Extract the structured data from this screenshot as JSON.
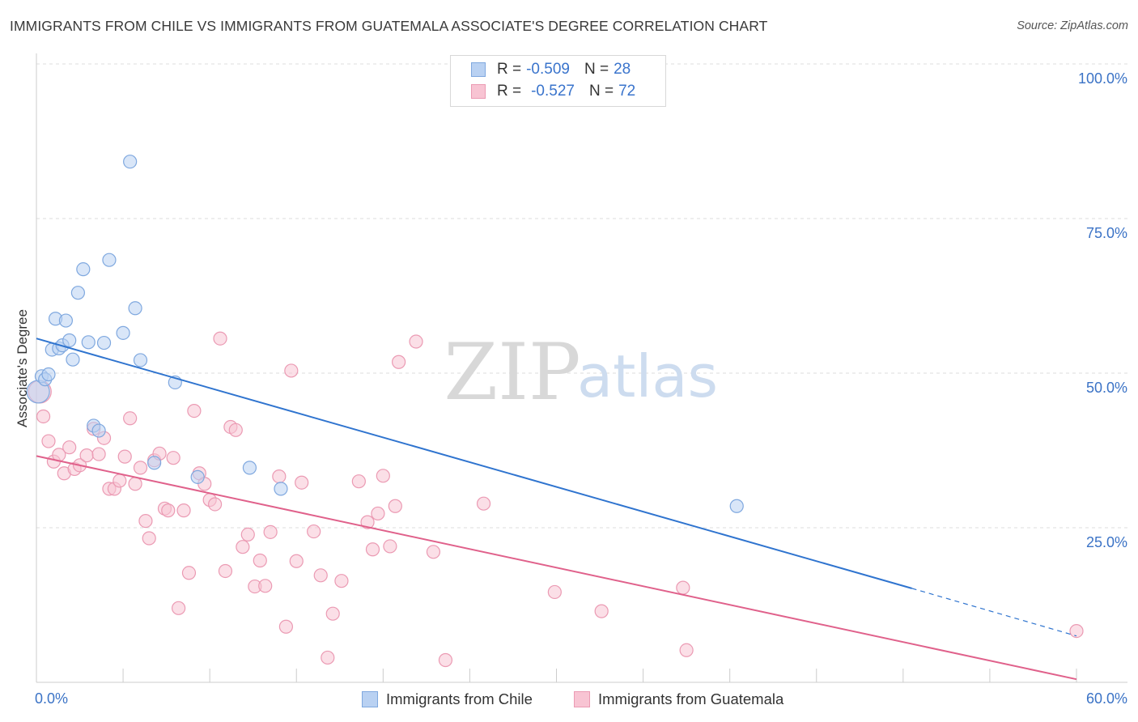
{
  "title": "IMMIGRANTS FROM CHILE VS IMMIGRANTS FROM GUATEMALA ASSOCIATE'S DEGREE CORRELATION CHART",
  "source": "Source: ZipAtlas.com",
  "watermark": {
    "zip": "ZIP",
    "atlas": "atlas"
  },
  "stats": [
    {
      "r_label": "R =",
      "r_value": "-0.509",
      "n_label": "N =",
      "n_value": "28"
    },
    {
      "r_label": "R =",
      "r_value": "-0.527",
      "n_label": "N =",
      "n_value": "72"
    }
  ],
  "legend": [
    {
      "label": "Immigrants from Chile"
    },
    {
      "label": "Immigrants from Guatemala"
    }
  ],
  "colors": {
    "chile_fill": "#b9d1f2",
    "chile_stroke": "#7fa8df",
    "chile_line": "#2f74cf",
    "guat_fill": "#f8c4d3",
    "guat_stroke": "#eb9ab3",
    "guat_line": "#e0618b",
    "tick_label": "#3b73c6"
  },
  "chart_data": {
    "type": "scatter",
    "xlabel": "",
    "ylabel": "Associate's Degree",
    "xlim": [
      0,
      60
    ],
    "ylim": [
      0,
      100
    ],
    "x_tick_labels": [
      {
        "value": 0,
        "label": "0.0%"
      },
      {
        "value": 60,
        "label": "60.0%"
      }
    ],
    "y_tick_labels": [
      {
        "value": 100,
        "label": "100.0%"
      },
      {
        "value": 75,
        "label": "75.0%"
      },
      {
        "value": 50,
        "label": "50.0%"
      },
      {
        "value": 25,
        "label": "25.0%"
      }
    ],
    "grid": true,
    "series": [
      {
        "name": "Immigrants from Chile",
        "points": [
          [
            0.1,
            47.0
          ],
          [
            0.3,
            49.5
          ],
          [
            0.5,
            49.0
          ],
          [
            0.7,
            49.8
          ],
          [
            0.9,
            53.8
          ],
          [
            1.1,
            58.8
          ],
          [
            1.3,
            54.0
          ],
          [
            1.5,
            54.5
          ],
          [
            1.7,
            58.5
          ],
          [
            1.9,
            55.3
          ],
          [
            2.1,
            52.2
          ],
          [
            2.4,
            63.0
          ],
          [
            2.7,
            66.8
          ],
          [
            3.0,
            55.0
          ],
          [
            3.3,
            41.5
          ],
          [
            3.6,
            40.7
          ],
          [
            3.9,
            54.9
          ],
          [
            4.2,
            68.3
          ],
          [
            5.0,
            56.5
          ],
          [
            5.4,
            84.2
          ],
          [
            5.7,
            60.5
          ],
          [
            6.0,
            52.1
          ],
          [
            6.8,
            35.5
          ],
          [
            8.0,
            48.5
          ],
          [
            9.3,
            33.2
          ],
          [
            12.3,
            34.7
          ],
          [
            14.1,
            31.3
          ],
          [
            40.4,
            28.5
          ]
        ],
        "trend": {
          "x": [
            0.0,
            50.5
          ],
          "y": [
            55.6,
            15.2
          ],
          "dashed_to": [
            60.0,
            7.5
          ]
        }
      },
      {
        "name": "Immigrants from Guatemala",
        "points": [
          [
            0.2,
            47.0
          ],
          [
            0.4,
            43.0
          ],
          [
            0.7,
            39.0
          ],
          [
            1.0,
            35.7
          ],
          [
            1.3,
            36.8
          ],
          [
            1.6,
            33.8
          ],
          [
            1.9,
            38.0
          ],
          [
            2.2,
            34.5
          ],
          [
            2.5,
            35.1
          ],
          [
            2.9,
            36.7
          ],
          [
            3.3,
            41.0
          ],
          [
            3.6,
            36.9
          ],
          [
            3.9,
            39.5
          ],
          [
            4.2,
            31.3
          ],
          [
            4.5,
            31.3
          ],
          [
            4.8,
            32.6
          ],
          [
            5.1,
            36.5
          ],
          [
            5.4,
            42.7
          ],
          [
            5.7,
            32.1
          ],
          [
            6.0,
            34.7
          ],
          [
            6.3,
            26.1
          ],
          [
            6.5,
            23.3
          ],
          [
            6.8,
            35.9
          ],
          [
            7.1,
            37.0
          ],
          [
            7.4,
            28.1
          ],
          [
            7.6,
            27.8
          ],
          [
            7.9,
            36.3
          ],
          [
            8.2,
            12.0
          ],
          [
            8.5,
            27.8
          ],
          [
            8.8,
            17.7
          ],
          [
            9.1,
            43.9
          ],
          [
            9.4,
            33.8
          ],
          [
            9.7,
            32.1
          ],
          [
            10.0,
            29.5
          ],
          [
            10.3,
            28.8
          ],
          [
            10.6,
            55.6
          ],
          [
            10.9,
            18.0
          ],
          [
            11.2,
            41.3
          ],
          [
            11.5,
            40.8
          ],
          [
            11.9,
            21.9
          ],
          [
            12.2,
            23.9
          ],
          [
            12.6,
            15.5
          ],
          [
            12.9,
            19.7
          ],
          [
            13.2,
            15.6
          ],
          [
            13.5,
            24.3
          ],
          [
            14.0,
            33.3
          ],
          [
            14.4,
            9.0
          ],
          [
            14.7,
            50.4
          ],
          [
            15.0,
            19.6
          ],
          [
            15.3,
            32.3
          ],
          [
            16.0,
            24.4
          ],
          [
            16.4,
            17.3
          ],
          [
            16.8,
            4.0
          ],
          [
            17.1,
            11.1
          ],
          [
            17.6,
            16.4
          ],
          [
            18.6,
            32.5
          ],
          [
            19.1,
            25.9
          ],
          [
            19.4,
            21.5
          ],
          [
            19.7,
            27.3
          ],
          [
            20.0,
            33.4
          ],
          [
            20.4,
            22.0
          ],
          [
            20.7,
            28.5
          ],
          [
            20.9,
            51.8
          ],
          [
            21.9,
            55.1
          ],
          [
            22.9,
            21.1
          ],
          [
            23.6,
            3.6
          ],
          [
            25.8,
            28.9
          ],
          [
            29.9,
            14.6
          ],
          [
            32.6,
            11.5
          ],
          [
            37.3,
            15.3
          ],
          [
            37.5,
            5.2
          ],
          [
            60.0,
            8.3
          ]
        ],
        "trend": {
          "x": [
            0.0,
            60.0
          ],
          "y": [
            36.6,
            0.5
          ]
        }
      }
    ]
  }
}
